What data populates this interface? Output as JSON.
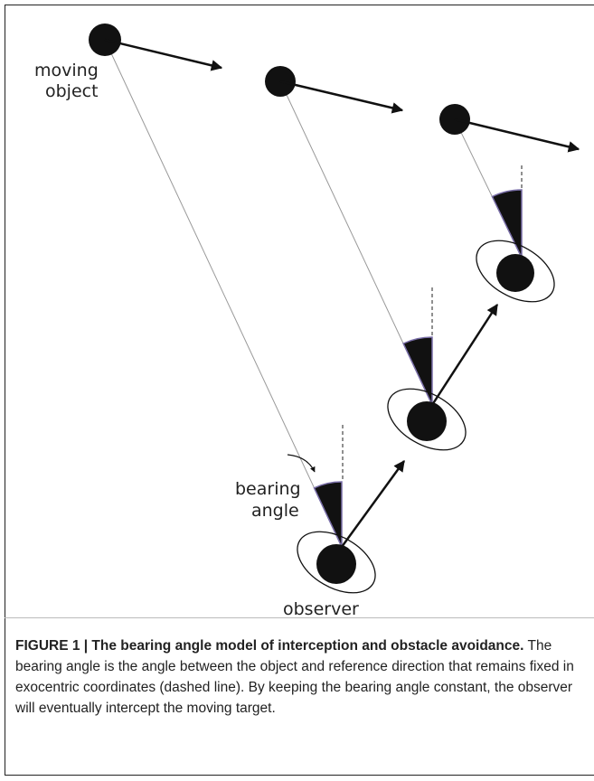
{
  "figure": {
    "labels": {
      "moving_object": [
        "moving",
        "object"
      ],
      "bearing_angle": [
        "bearing",
        "angle"
      ],
      "observer": "observer"
    },
    "caption": {
      "title": "FIGURE 1 | The bearing angle model of interception and obstacle avoidance.",
      "text": "The bearing angle is the angle between the object and reference direction that remains fixed in exocentric coordinates (dashed line). By keeping the bearing angle constant, the observer will eventually intercept the moving target."
    }
  }
}
